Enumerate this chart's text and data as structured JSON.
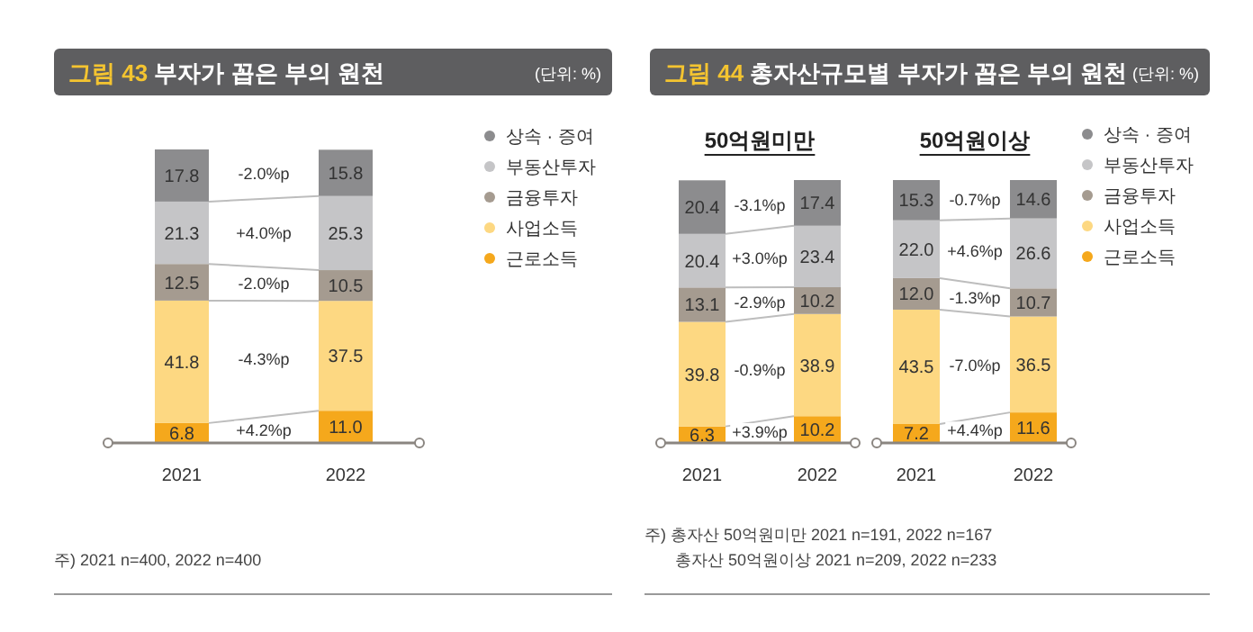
{
  "chart_data": [
    {
      "type": "other",
      "title": "그림 43 부자가 꼽은 부의 원천",
      "subtitle": "(단위: %)",
      "annotations": [
        "주) 2021 n=400, 2022 n=400"
      ]
    },
    {
      "type": "bar",
      "categories": [
        "2021",
        "2022"
      ],
      "stacked": true,
      "legend": "right",
      "series": [
        {
          "name": "근로소득",
          "color": "#f5a81c",
          "values": [
            6.8,
            11.0
          ],
          "value_labels": [
            "6.8",
            "11.0"
          ]
        },
        {
          "name": "사업소득",
          "color": "#fdd882",
          "values": [
            41.8,
            37.5
          ],
          "value_labels": [
            "41.8",
            "37.5"
          ]
        },
        {
          "name": "금융투자",
          "color": "#a59b90",
          "values": [
            12.5,
            10.5
          ],
          "value_labels": [
            "12.5",
            "10.5"
          ]
        },
        {
          "name": "부동산투자",
          "color": "#c5c5c7",
          "values": [
            21.3,
            25.3
          ],
          "value_labels": [
            "21.3",
            "25.3"
          ]
        },
        {
          "name": "상속 · 증여",
          "color": "#8c8c8e",
          "values": [
            17.8,
            15.8
          ],
          "value_labels": [
            "17.8",
            "15.8"
          ]
        }
      ],
      "annotations": [
        "+4.2%p",
        "-4.3%p",
        "-2.0%p",
        "+4.0%p",
        "-2.0%p"
      ]
    },
    {
      "type": "other",
      "title": "그림 44 총자산규모별 부자가 꼽은 부의 원천",
      "subtitle": "(단위: %)",
      "annotations": [
        "주) 총자산 50억원미만 2021 n=191, 2022 n=167",
        "총자산 50억원이상 2021 n=209, 2022 n=233"
      ]
    },
    {
      "type": "bar",
      "title": "50억원미만",
      "categories": [
        "2021",
        "2022"
      ],
      "stacked": true,
      "series": [
        {
          "color": "#f5a81c",
          "values": [
            6.3,
            10.2
          ],
          "value_labels": [
            "6.3",
            "10.2"
          ]
        },
        {
          "color": "#fdd882",
          "values": [
            39.8,
            38.9
          ],
          "value_labels": [
            "39.8",
            "38.9"
          ]
        },
        {
          "color": "#a59b90",
          "values": [
            13.1,
            10.2
          ],
          "value_labels": [
            "13.1",
            "10.2"
          ]
        },
        {
          "color": "#c5c5c7",
          "values": [
            20.4,
            23.4
          ],
          "value_labels": [
            "20.4",
            "23.4"
          ]
        },
        {
          "color": "#8c8c8e",
          "values": [
            20.4,
            17.4
          ],
          "value_labels": [
            "20.4",
            "17.4"
          ]
        }
      ],
      "annotations": [
        "+3.9%p",
        "-0.9%p",
        "-2.9%p",
        "+3.0%p",
        "-3.1%p"
      ]
    },
    {
      "type": "bar",
      "title": "50억원이상",
      "categories": [
        "2021",
        "2022"
      ],
      "stacked": true,
      "legend": "right",
      "series": [
        {
          "name": "근로소득",
          "color": "#f5a81c",
          "values": [
            7.2,
            11.6
          ],
          "value_labels": [
            "7.2",
            "11.6"
          ]
        },
        {
          "name": "사업소득",
          "color": "#fdd882",
          "values": [
            43.5,
            36.5
          ],
          "value_labels": [
            "43.5",
            "36.5"
          ]
        },
        {
          "name": "금융투자",
          "color": "#a59b90",
          "values": [
            12.0,
            10.7
          ],
          "value_labels": [
            "12.0",
            "10.7"
          ]
        },
        {
          "name": "부동산투자",
          "color": "#c5c5c7",
          "values": [
            22.0,
            26.6
          ],
          "value_labels": [
            "22.0",
            "26.6"
          ]
        },
        {
          "name": "상속 · 증여",
          "color": "#8c8c8e",
          "values": [
            15.3,
            14.6
          ],
          "value_labels": [
            "15.3",
            "14.6"
          ]
        }
      ],
      "annotations": [
        "+4.4%p",
        "-7.0%p",
        "-1.3%p",
        "+4.6%p",
        "-0.7%p"
      ]
    }
  ]
}
